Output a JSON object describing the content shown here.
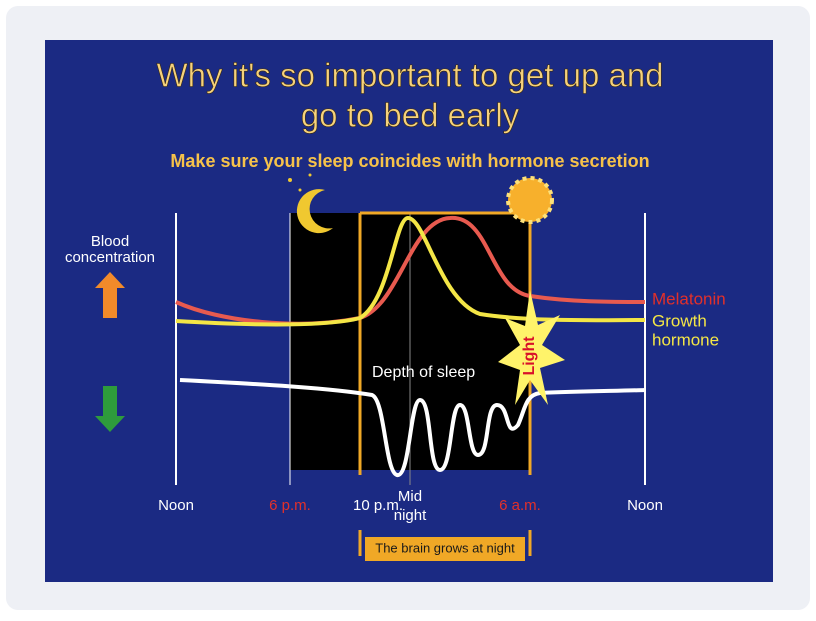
{
  "slide": {
    "title": [
      "Why it's so important to get up and",
      "go to bed early"
    ],
    "subtitle": "Make sure your sleep coincides with hormone secretion",
    "y_axis_label": [
      "Blood",
      "concentration"
    ],
    "curves": {
      "melatonin": "Melatonin",
      "growth_hormone": [
        "Growth",
        "hormone"
      ],
      "sleep": "Depth of sleep"
    },
    "light": "Light",
    "times": {
      "noon_left": "Noon",
      "six_pm": "6 p.m.",
      "ten_pm": "10 p.m.",
      "midnight": [
        "Mid",
        "night"
      ],
      "six_am": "6 a.m.",
      "noon_right": "Noon"
    },
    "caption": "The brain grows at night"
  }
}
